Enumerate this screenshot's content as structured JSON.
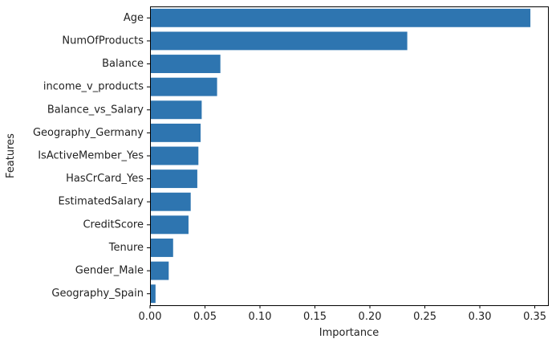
{
  "chart_data": {
    "type": "bar",
    "orientation": "horizontal",
    "categories": [
      "Age",
      "NumOfProducts",
      "Balance",
      "income_v_products",
      "Balance_vs_Salary",
      "Geography_Germany",
      "IsActiveMember_Yes",
      "HasCrCard_Yes",
      "EstimatedSalary",
      "CreditScore",
      "Tenure",
      "Gender_Male",
      "Geography_Spain"
    ],
    "values": [
      0.346,
      0.234,
      0.064,
      0.061,
      0.047,
      0.046,
      0.044,
      0.043,
      0.037,
      0.035,
      0.021,
      0.017,
      0.005
    ],
    "title": "",
    "xlabel": "Importance",
    "ylabel": "Features",
    "xlim": [
      0,
      0.362
    ],
    "xticks": [
      0.0,
      0.05,
      0.1,
      0.15,
      0.2,
      0.25,
      0.3,
      0.35
    ],
    "xtick_labels": [
      "0.00",
      "0.05",
      "0.10",
      "0.15",
      "0.20",
      "0.25",
      "0.30",
      "0.35"
    ],
    "grid": false,
    "bar_color": "#2e75b0"
  }
}
